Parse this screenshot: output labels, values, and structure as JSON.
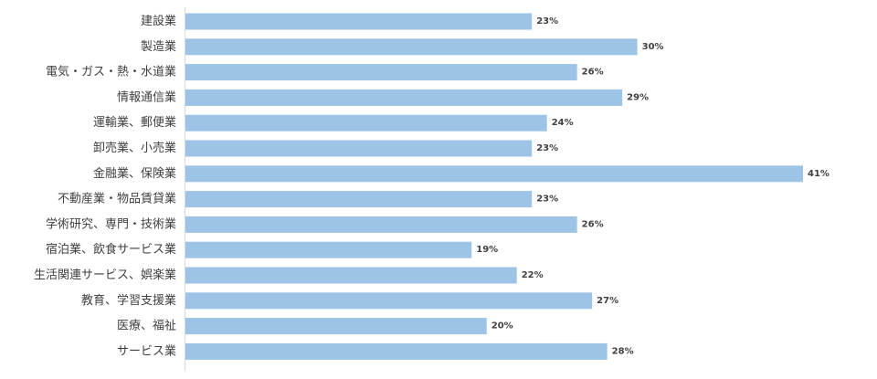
{
  "chart_data": {
    "type": "bar",
    "orientation": "horizontal",
    "categories": [
      "建設業",
      "製造業",
      "電気・ガス・熱・水道業",
      "情報通信業",
      "運輸業、郵便業",
      "卸売業、小売業",
      "金融業、保険業",
      "不動産業・物品賃貸業",
      "学術研究、専門・技術業",
      "宿泊業、飲食サービス業",
      "生活関連サービス、娯楽業",
      "教育、学習支援業",
      "医療、福祉",
      "サービス業"
    ],
    "values": [
      23,
      30,
      26,
      29,
      24,
      23,
      41,
      23,
      26,
      19,
      22,
      27,
      20,
      28
    ],
    "value_labels": [
      "23%",
      "30%",
      "26%",
      "29%",
      "24%",
      "23%",
      "41%",
      "23%",
      "26%",
      "19%",
      "22%",
      "27%",
      "20%",
      "28%"
    ],
    "unit": "%",
    "xlim": [
      0,
      41
    ],
    "title": "",
    "xlabel": "",
    "ylabel": "",
    "grid": false,
    "legend": "none",
    "bar_color": "#9dc3e6",
    "axis_color": "#d9d9d9"
  }
}
